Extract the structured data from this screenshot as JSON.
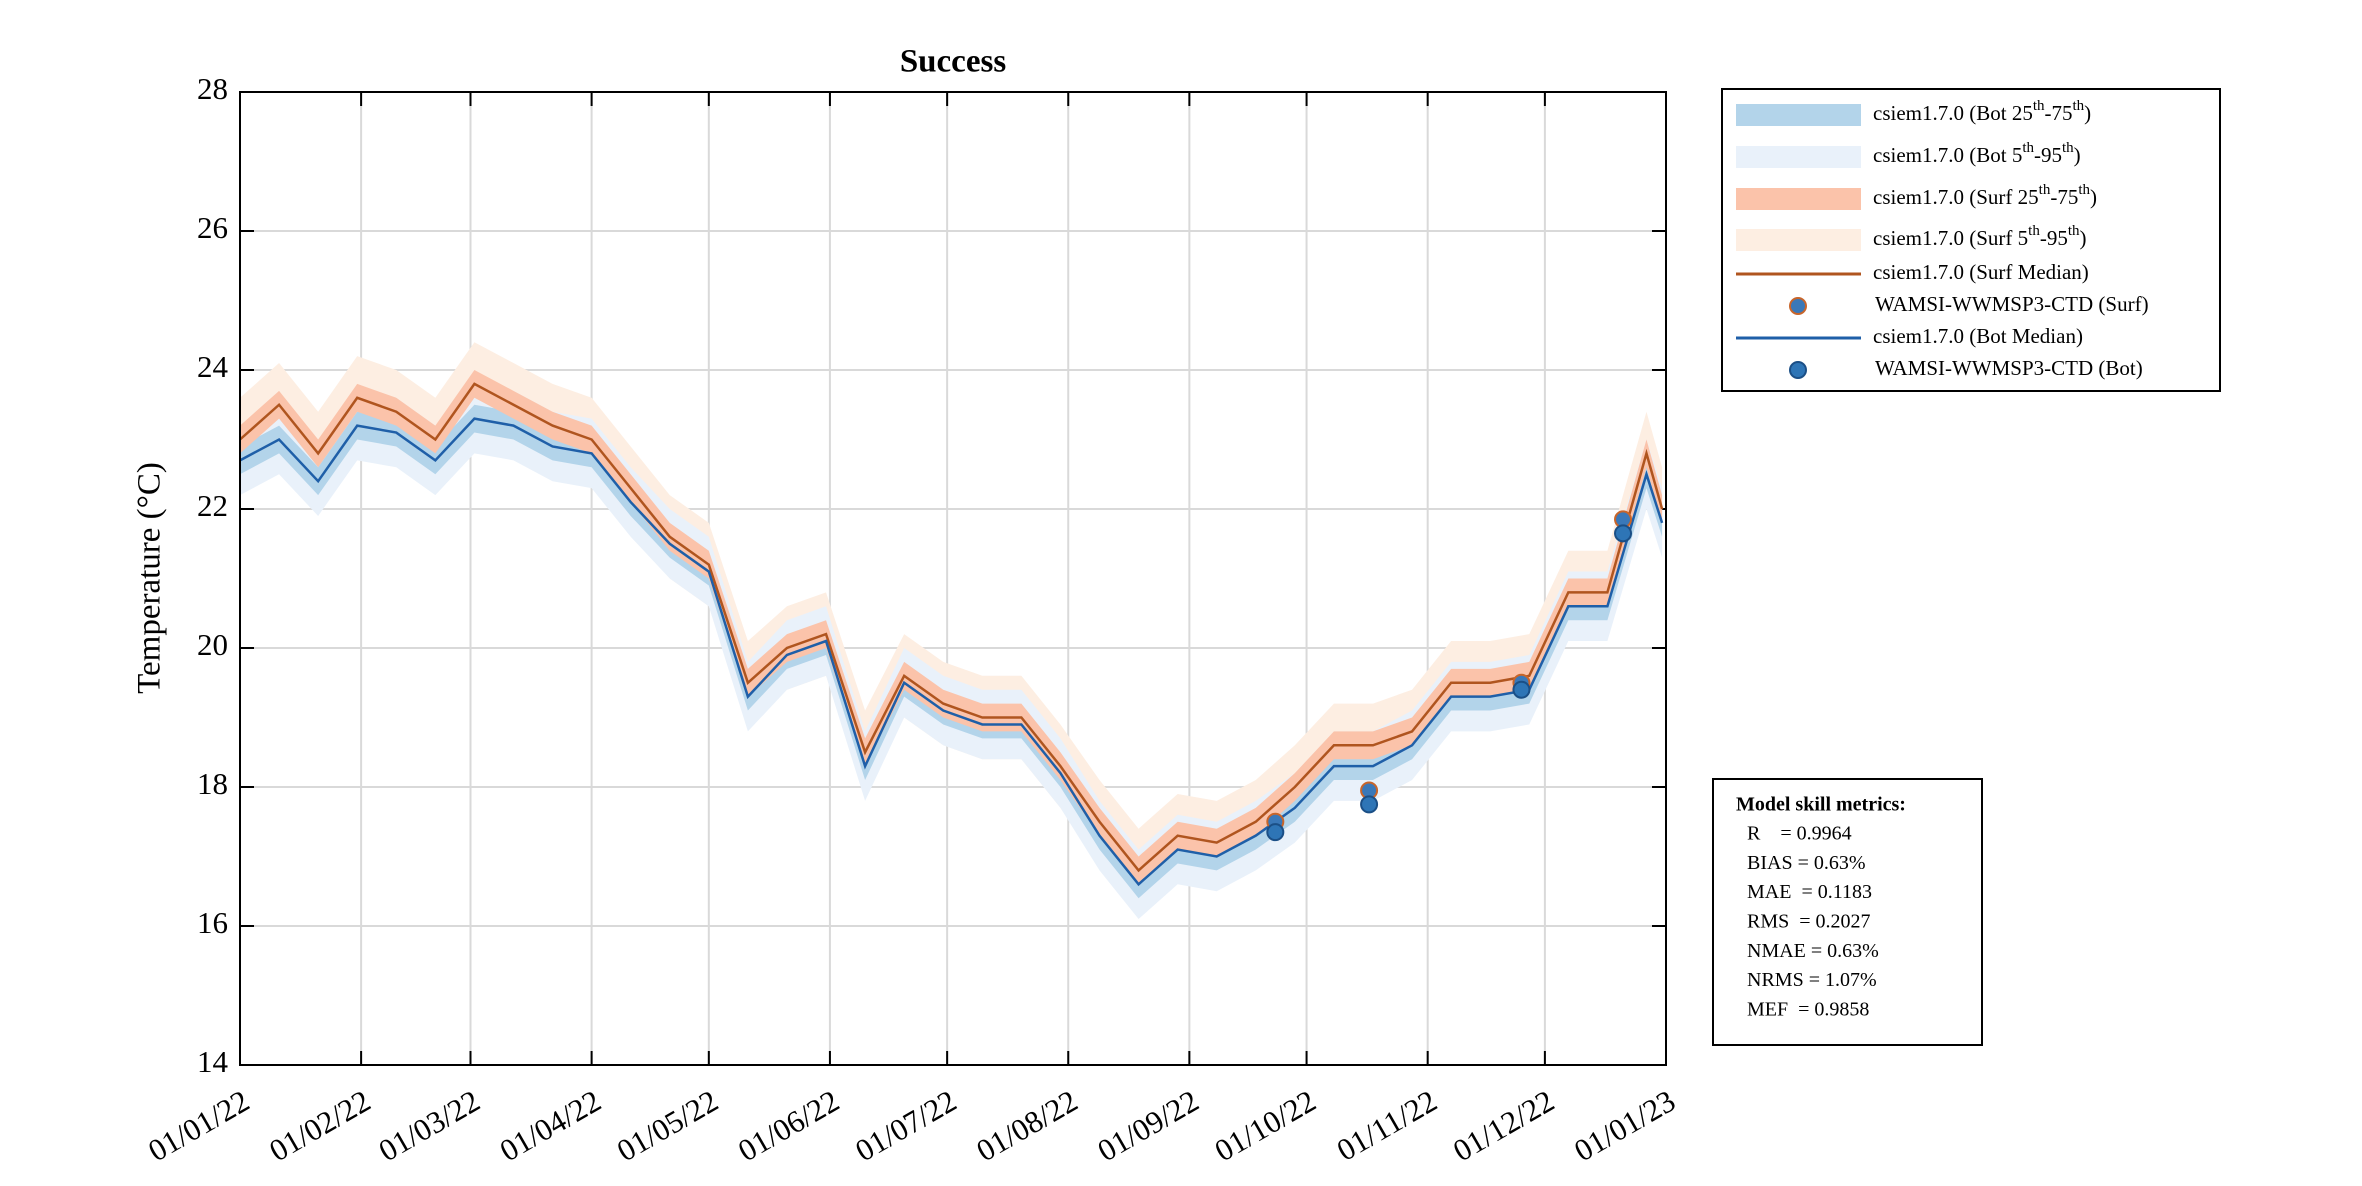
{
  "chart_data": {
    "type": "line",
    "title": "Success",
    "ylabel": "Temperature (°C)",
    "x": [
      "2022-01-01",
      "2022-01-11",
      "2022-01-21",
      "2022-01-31",
      "2022-02-10",
      "2022-02-20",
      "2022-03-02",
      "2022-03-12",
      "2022-03-22",
      "2022-04-01",
      "2022-04-11",
      "2022-04-21",
      "2022-05-01",
      "2022-05-11",
      "2022-05-21",
      "2022-05-31",
      "2022-06-10",
      "2022-06-20",
      "2022-06-30",
      "2022-07-10",
      "2022-07-20",
      "2022-07-30",
      "2022-08-09",
      "2022-08-19",
      "2022-08-29",
      "2022-09-08",
      "2022-09-18",
      "2022-09-28",
      "2022-10-08",
      "2022-10-18",
      "2022-10-28",
      "2022-11-07",
      "2022-11-17",
      "2022-11-27",
      "2022-12-07",
      "2022-12-17",
      "2022-12-27",
      "2022-12-31"
    ],
    "xlim": [
      "2022-01-01",
      "2023-01-01"
    ],
    "xticks": [
      {
        "value": "2022-01-01",
        "label": "01/01/22"
      },
      {
        "value": "2022-02-01",
        "label": "01/02/22"
      },
      {
        "value": "2022-03-01",
        "label": "01/03/22"
      },
      {
        "value": "2022-04-01",
        "label": "01/04/22"
      },
      {
        "value": "2022-05-01",
        "label": "01/05/22"
      },
      {
        "value": "2022-06-01",
        "label": "01/06/22"
      },
      {
        "value": "2022-07-01",
        "label": "01/07/22"
      },
      {
        "value": "2022-08-01",
        "label": "01/08/22"
      },
      {
        "value": "2022-09-01",
        "label": "01/09/22"
      },
      {
        "value": "2022-10-01",
        "label": "01/10/22"
      },
      {
        "value": "2022-11-01",
        "label": "01/11/22"
      },
      {
        "value": "2022-12-01",
        "label": "01/12/22"
      },
      {
        "value": "2023-01-01",
        "label": "01/01/23"
      }
    ],
    "ylim": [
      14,
      28
    ],
    "yticks": [
      14,
      16,
      18,
      20,
      22,
      24,
      26,
      28
    ],
    "grid": true,
    "legend": "outside-right",
    "series": [
      {
        "name": "csiem1.7.0 (Bot 25th-75th)",
        "kind": "band",
        "color": "#b3d4ea",
        "low": [
          22.5,
          22.8,
          22.2,
          23.0,
          22.9,
          22.5,
          23.1,
          23.0,
          22.7,
          22.6,
          21.9,
          21.3,
          20.9,
          19.1,
          19.7,
          19.9,
          18.1,
          19.3,
          18.9,
          18.7,
          18.7,
          18.0,
          17.1,
          16.4,
          16.9,
          16.8,
          17.1,
          17.5,
          18.1,
          18.1,
          18.4,
          19.1,
          19.1,
          19.2,
          20.4,
          20.4,
          22.3,
          21.6
        ],
        "high": [
          22.9,
          23.2,
          22.6,
          23.4,
          23.3,
          22.9,
          23.5,
          23.4,
          23.1,
          23.0,
          22.3,
          21.7,
          21.3,
          19.5,
          20.1,
          20.3,
          18.5,
          19.7,
          19.3,
          19.1,
          19.1,
          18.4,
          17.5,
          16.8,
          17.3,
          17.2,
          17.5,
          17.9,
          18.5,
          18.5,
          18.8,
          19.5,
          19.5,
          19.6,
          20.8,
          20.8,
          22.7,
          22.0
        ]
      },
      {
        "name": "csiem1.7.0 (Bot 5th-95th)",
        "kind": "band",
        "color": "#e9f1fa",
        "low": [
          22.2,
          22.5,
          21.9,
          22.7,
          22.6,
          22.2,
          22.8,
          22.7,
          22.4,
          22.3,
          21.6,
          21.0,
          20.6,
          18.8,
          19.4,
          19.6,
          17.8,
          19.0,
          18.6,
          18.4,
          18.4,
          17.7,
          16.8,
          16.1,
          16.6,
          16.5,
          16.8,
          17.2,
          17.8,
          17.8,
          18.1,
          18.8,
          18.8,
          18.9,
          20.1,
          20.1,
          22.0,
          21.3
        ],
        "high": [
          23.2,
          23.5,
          22.9,
          23.7,
          23.6,
          23.2,
          23.8,
          23.7,
          23.4,
          23.3,
          22.6,
          22.0,
          21.6,
          19.8,
          20.4,
          20.6,
          18.8,
          20.0,
          19.6,
          19.4,
          19.4,
          18.7,
          17.8,
          17.1,
          17.6,
          17.5,
          17.8,
          18.2,
          18.8,
          18.8,
          19.1,
          19.8,
          19.8,
          19.9,
          21.1,
          21.1,
          23.0,
          22.3
        ]
      },
      {
        "name": "csiem1.7.0 (Surf 25th-75th)",
        "kind": "band",
        "color": "#fbc3aa",
        "low": [
          22.8,
          23.3,
          22.6,
          23.4,
          23.2,
          22.8,
          23.6,
          23.3,
          23.0,
          22.8,
          22.1,
          21.4,
          21.0,
          19.3,
          19.8,
          20.0,
          18.3,
          19.4,
          19.0,
          18.8,
          18.8,
          18.1,
          17.3,
          16.6,
          17.1,
          17.0,
          17.3,
          17.8,
          18.4,
          18.4,
          18.6,
          19.3,
          19.3,
          19.4,
          20.6,
          20.6,
          22.6,
          21.8
        ],
        "high": [
          23.2,
          23.7,
          23.0,
          23.8,
          23.6,
          23.2,
          24.0,
          23.7,
          23.4,
          23.2,
          22.5,
          21.8,
          21.4,
          19.7,
          20.2,
          20.4,
          18.7,
          19.8,
          19.4,
          19.2,
          19.2,
          18.5,
          17.7,
          17.0,
          17.5,
          17.4,
          17.7,
          18.2,
          18.8,
          18.8,
          19.0,
          19.7,
          19.7,
          19.8,
          21.0,
          21.0,
          23.0,
          22.2
        ]
      },
      {
        "name": "csiem1.7.0 (Surf 5th-95th)",
        "kind": "band",
        "color": "#fdeee2",
        "low": [
          22.4,
          22.9,
          22.2,
          23.0,
          22.8,
          22.4,
          23.2,
          22.9,
          22.6,
          22.4,
          21.7,
          21.0,
          20.6,
          18.9,
          19.4,
          19.6,
          17.9,
          19.0,
          18.6,
          18.4,
          18.4,
          17.7,
          16.9,
          16.2,
          16.7,
          16.6,
          16.9,
          17.4,
          18.0,
          18.0,
          18.2,
          18.9,
          18.9,
          19.0,
          20.2,
          20.2,
          22.2,
          21.4
        ],
        "high": [
          23.6,
          24.1,
          23.4,
          24.2,
          24.0,
          23.6,
          24.4,
          24.1,
          23.8,
          23.6,
          22.9,
          22.2,
          21.8,
          20.1,
          20.6,
          20.8,
          19.1,
          20.2,
          19.8,
          19.6,
          19.6,
          18.9,
          18.1,
          17.4,
          17.9,
          17.8,
          18.1,
          18.6,
          19.2,
          19.2,
          19.4,
          20.1,
          20.1,
          20.2,
          21.4,
          21.4,
          23.4,
          22.6
        ]
      },
      {
        "name": "csiem1.7.0 (Surf Median)",
        "kind": "line",
        "color": "#b0551f",
        "values": [
          23.0,
          23.5,
          22.8,
          23.6,
          23.4,
          23.0,
          23.8,
          23.5,
          23.2,
          23.0,
          22.3,
          21.6,
          21.2,
          19.5,
          20.0,
          20.2,
          18.5,
          19.6,
          19.2,
          19.0,
          19.0,
          18.3,
          17.5,
          16.8,
          17.3,
          17.2,
          17.5,
          18.0,
          18.6,
          18.6,
          18.8,
          19.5,
          19.5,
          19.6,
          20.8,
          20.8,
          22.8,
          22.0
        ]
      },
      {
        "name": "WAMSI-WWMSP3-CTD (Surf)",
        "kind": "points",
        "color": "#3a78b8",
        "edgecolor": "#c8652a",
        "x": [
          "2022-09-23",
          "2022-10-17",
          "2022-11-25",
          "2022-12-21"
        ],
        "values": [
          17.5,
          17.95,
          19.5,
          21.85
        ]
      },
      {
        "name": "csiem1.7.0 (Bot Median)",
        "kind": "line",
        "color": "#1f5fa8",
        "values": [
          22.7,
          23.0,
          22.4,
          23.2,
          23.1,
          22.7,
          23.3,
          23.2,
          22.9,
          22.8,
          22.1,
          21.5,
          21.1,
          19.3,
          19.9,
          20.1,
          18.3,
          19.5,
          19.1,
          18.9,
          18.9,
          18.2,
          17.3,
          16.6,
          17.1,
          17.0,
          17.3,
          17.7,
          18.3,
          18.3,
          18.6,
          19.3,
          19.3,
          19.4,
          20.6,
          20.6,
          22.5,
          21.8
        ]
      },
      {
        "name": "WAMSI-WWMSP3-CTD (Bot)",
        "kind": "points",
        "color": "#2e75b6",
        "edgecolor": "#1b4f86",
        "x": [
          "2022-09-23",
          "2022-10-17",
          "2022-11-25",
          "2022-12-21"
        ],
        "values": [
          17.35,
          17.75,
          19.4,
          21.65
        ]
      }
    ],
    "annotation": {
      "title": "Model skill metrics:",
      "lines": [
        "R    = 0.9964",
        "BIAS = 0.63%",
        "MAE  = 0.1183",
        "RMS  = 0.2027",
        "NMAE = 0.63%",
        "NRMS = 1.07%",
        "MEF  = 0.9858"
      ]
    }
  }
}
